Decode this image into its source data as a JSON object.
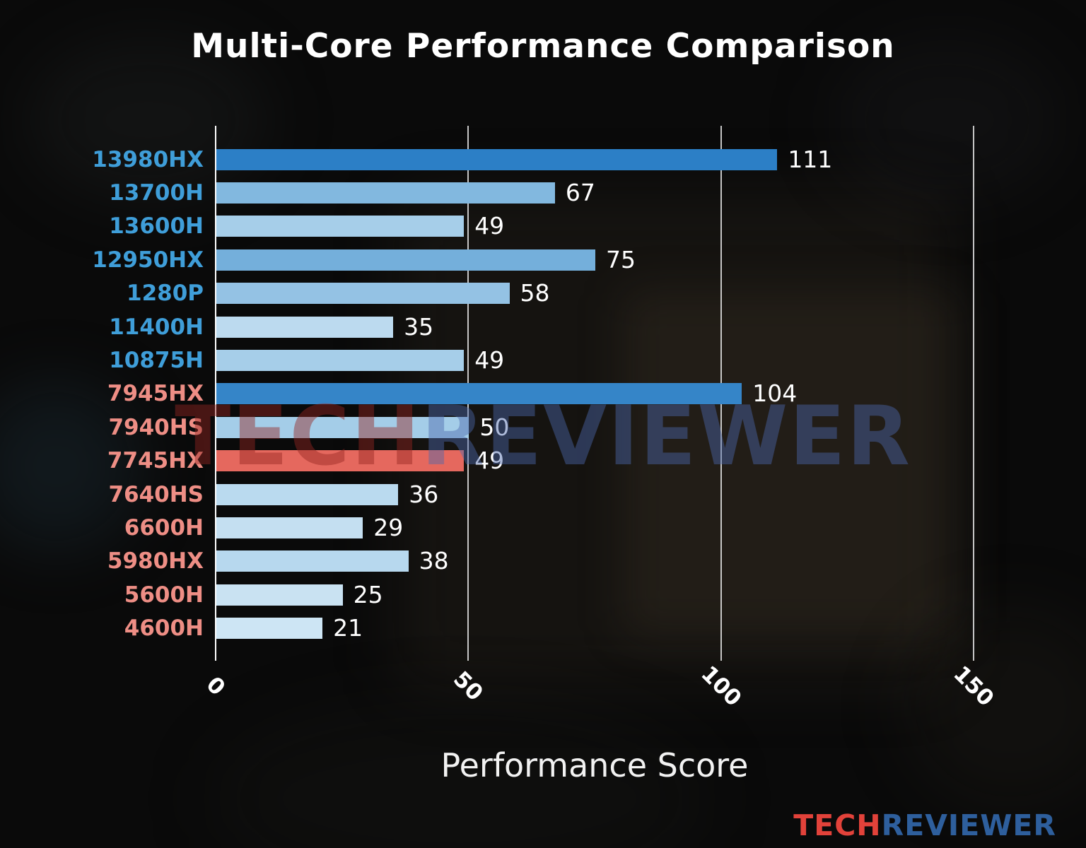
{
  "title": "Multi-Core Performance Comparison",
  "xlabel": "Performance Score",
  "watermark": {
    "part1": "TECH",
    "part2": "REVIEWER"
  },
  "logo": {
    "part1": "TECH",
    "part2": "REVIEWER"
  },
  "colors": {
    "highlight_bar": "#e5685e",
    "intel_label": "#3f9ed9",
    "amd_label": "#ee8e85",
    "value_text": "#ffffff",
    "grid": "#e6e6e6"
  },
  "chart_data": {
    "type": "bar",
    "orientation": "horizontal",
    "title": "Multi-Core Performance Comparison",
    "xlabel": "Performance Score",
    "ylabel": "",
    "xlim": [
      0,
      150
    ],
    "xticks": [
      0,
      50,
      100,
      150
    ],
    "grid": true,
    "legend": "none",
    "categories": [
      "13980HX",
      "13700H",
      "13600H",
      "12950HX",
      "1280P",
      "11400H",
      "10875H",
      "7945HX",
      "7940HS",
      "7745HX",
      "7640HS",
      "6600H",
      "5980HX",
      "5600H",
      "4600H"
    ],
    "values": [
      111,
      67,
      49,
      75,
      58,
      35,
      49,
      104,
      50,
      49,
      36,
      29,
      38,
      25,
      21
    ],
    "items": [
      {
        "label": "13980HX",
        "value": 111,
        "bar_color": "#2c7fc6",
        "label_color": "#3f9ed9",
        "highlight": false
      },
      {
        "label": "13700H",
        "value": 67,
        "bar_color": "#82b8df",
        "label_color": "#3f9ed9",
        "highlight": false
      },
      {
        "label": "13600H",
        "value": 49,
        "bar_color": "#a6cee9",
        "label_color": "#3f9ed9",
        "highlight": false
      },
      {
        "label": "12950HX",
        "value": 75,
        "bar_color": "#74afdb",
        "label_color": "#3f9ed9",
        "highlight": false
      },
      {
        "label": "1280P",
        "value": 58,
        "bar_color": "#94c2e4",
        "label_color": "#3f9ed9",
        "highlight": false
      },
      {
        "label": "11400H",
        "value": 35,
        "bar_color": "#bcdaef",
        "label_color": "#3f9ed9",
        "highlight": false
      },
      {
        "label": "10875H",
        "value": 49,
        "bar_color": "#a6cee9",
        "label_color": "#3f9ed9",
        "highlight": false
      },
      {
        "label": "7945HX",
        "value": 104,
        "bar_color": "#3585c8",
        "label_color": "#ee8e85",
        "highlight": false
      },
      {
        "label": "7940HS",
        "value": 50,
        "bar_color": "#a4cde8",
        "label_color": "#ee8e85",
        "highlight": false
      },
      {
        "label": "7745HX",
        "value": 49,
        "bar_color": "#e5685e",
        "label_color": "#ee8e85",
        "highlight": true
      },
      {
        "label": "7640HS",
        "value": 36,
        "bar_color": "#badaef",
        "label_color": "#ee8e85",
        "highlight": false
      },
      {
        "label": "6600H",
        "value": 29,
        "bar_color": "#c4dff1",
        "label_color": "#ee8e85",
        "highlight": false
      },
      {
        "label": "5980HX",
        "value": 38,
        "bar_color": "#b7d8ee",
        "label_color": "#ee8e85",
        "highlight": false
      },
      {
        "label": "5600H",
        "value": 25,
        "bar_color": "#c9e2f2",
        "label_color": "#ee8e85",
        "highlight": false
      },
      {
        "label": "4600H",
        "value": 21,
        "bar_color": "#cde5f4",
        "label_color": "#ee8e85",
        "highlight": false
      }
    ]
  }
}
